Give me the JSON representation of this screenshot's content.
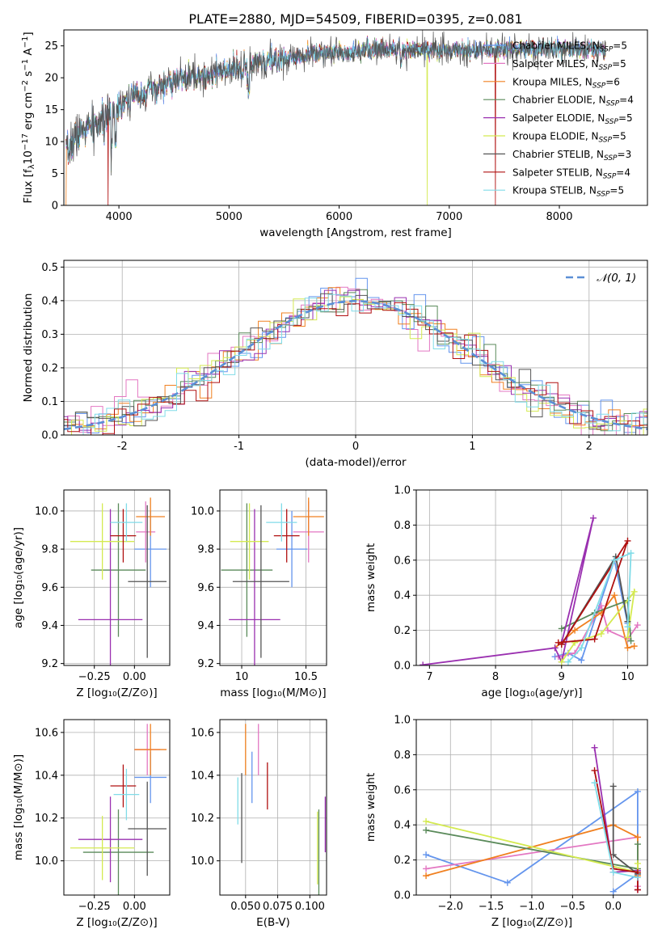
{
  "title": "PLATE=2880, MJD=54509, FIBERID=0395, z=0.081",
  "colors": {
    "Chabrier MILES": "#6495ed",
    "Salpeter MILES": "#e377c2",
    "Kroupa MILES": "#f08020",
    "Chabrier ELODIE": "#5a8a5a",
    "Salpeter ELODIE": "#9a30b0",
    "Kroupa ELODIE": "#d4ea50",
    "Chabrier STELIB": "#555555",
    "Salpeter STELIB": "#b01010",
    "Kroupa STELIB": "#80dce8"
  },
  "chart_data": [
    {
      "id": "spectrum",
      "type": "line",
      "title": "PLATE=2880, MJD=54509, FIBERID=0395, z=0.081",
      "xlabel": "wavelength [Angstrom, rest frame]",
      "ylabel": "Flux [fλ10⁻¹⁷ erg cm⁻² s⁻¹ A⁻¹]",
      "xlim": [
        3500,
        8800
      ],
      "ylim": [
        0,
        27.5
      ],
      "xticks": [
        4000,
        5000,
        6000,
        7000,
        8000
      ],
      "yticks": [
        0,
        5,
        10,
        15,
        20,
        25
      ],
      "grid": false,
      "legend_position": "top-right",
      "legend": [
        {
          "name": "Chabrier MILES",
          "nssp": "5"
        },
        {
          "name": "Salpeter MILES",
          "nssp": "5"
        },
        {
          "name": "Kroupa MILES",
          "nssp": "6"
        },
        {
          "name": "Chabrier ELODIE",
          "nssp": "4"
        },
        {
          "name": "Salpeter ELODIE",
          "nssp": "5"
        },
        {
          "name": "Kroupa ELODIE",
          "nssp": "5"
        },
        {
          "name": "Chabrier STELIB",
          "nssp": "3"
        },
        {
          "name": "Salpeter STELIB",
          "nssp": "4"
        },
        {
          "name": "Kroupa STELIB",
          "nssp": "5"
        }
      ],
      "continuum": [
        [
          3520,
          8
        ],
        [
          3600,
          10.5
        ],
        [
          3700,
          12
        ],
        [
          3850,
          13
        ],
        [
          3950,
          15
        ],
        [
          4100,
          17
        ],
        [
          4300,
          18
        ],
        [
          4500,
          19.5
        ],
        [
          4800,
          20.5
        ],
        [
          5000,
          21
        ],
        [
          5200,
          22
        ],
        [
          5500,
          23
        ],
        [
          5800,
          24
        ],
        [
          6000,
          24
        ],
        [
          6300,
          24.5
        ],
        [
          6600,
          24.5
        ],
        [
          7000,
          24.3
        ],
        [
          7400,
          24.2
        ],
        [
          7800,
          24.6
        ],
        [
          8100,
          24.5
        ],
        [
          8420,
          24.4
        ]
      ],
      "drops": [
        {
          "series": "Kroupa MILES",
          "x": 3520
        },
        {
          "series": "Salpeter STELIB",
          "x": 3900
        },
        {
          "series": "Kroupa ELODIE",
          "x": 6800
        },
        {
          "series": "Salpeter STELIB",
          "x": 7420
        }
      ]
    },
    {
      "id": "residuals",
      "type": "histogram",
      "xlabel": "(data-model)/error",
      "ylabel": "Normed distribution",
      "xlim": [
        -2.5,
        2.5
      ],
      "ylim": [
        0,
        0.52
      ],
      "xticks": [
        -2,
        -1,
        0,
        1,
        2
      ],
      "yticks": [
        0.0,
        0.1,
        0.2,
        0.3,
        0.4,
        0.5
      ],
      "grid": true,
      "legend_position": "top-right",
      "legend_label": "𝒩(0, 1)",
      "reference_color": "#5b8fd6",
      "bin_width": 0.1
    },
    {
      "id": "age_vs_Z",
      "type": "errorbar",
      "xlabel": "Z [log₁₀(Z/Z⊙)]",
      "ylabel": "age  [log₁₀(age/yr)]",
      "xlim": [
        -0.44,
        0.22
      ],
      "ylim": [
        9.19,
        10.11
      ],
      "xticks": [
        -0.25,
        0.0
      ],
      "xticklabels": [
        "−0.25",
        "0.00"
      ],
      "yticks": [
        9.2,
        9.4,
        9.6,
        9.8,
        10.0
      ],
      "grid": true,
      "points": [
        {
          "series": "Chabrier MILES",
          "x": 0.1,
          "xerr": 0.1,
          "y": 9.8,
          "yerr": 0.2
        },
        {
          "series": "Salpeter MILES",
          "x": 0.07,
          "xerr": 0.06,
          "y": 9.89,
          "yerr": 0.16
        },
        {
          "series": "Kroupa MILES",
          "x": 0.1,
          "xerr": 0.09,
          "y": 9.97,
          "yerr": 0.1
        },
        {
          "series": "Chabrier ELODIE",
          "x": -0.1,
          "xerr": 0.17,
          "y": 9.69,
          "yerr": 0.35
        },
        {
          "series": "Salpeter ELODIE",
          "x": -0.15,
          "xerr": 0.2,
          "y": 9.43,
          "yerr": 0.58
        },
        {
          "series": "Kroupa ELODIE",
          "x": -0.2,
          "xerr": 0.2,
          "y": 9.84,
          "yerr": 0.2
        },
        {
          "series": "Chabrier STELIB",
          "x": 0.08,
          "xerr": 0.12,
          "y": 9.63,
          "yerr": 0.4
        },
        {
          "series": "Salpeter STELIB",
          "x": -0.07,
          "xerr": 0.08,
          "y": 9.87,
          "yerr": 0.14
        },
        {
          "series": "Kroupa STELIB",
          "x": -0.05,
          "xerr": 0.1,
          "y": 9.94,
          "yerr": 0.1
        }
      ]
    },
    {
      "id": "age_vs_mass",
      "type": "errorbar",
      "xlabel": "mass [log₁₀(M/M⊙)]",
      "ylabel": "",
      "xlim": [
        9.83,
        10.66
      ],
      "ylim": [
        9.19,
        10.11
      ],
      "xticks": [
        10.0,
        10.5
      ],
      "yticks": [
        9.2,
        9.4,
        9.6,
        9.8,
        10.0
      ],
      "grid": true,
      "points": [
        {
          "series": "Chabrier MILES",
          "x": 10.39,
          "xerr": 0.12,
          "y": 9.8,
          "yerr": 0.2
        },
        {
          "series": "Salpeter MILES",
          "x": 10.52,
          "xerr": 0.12,
          "y": 9.89,
          "yerr": 0.16
        },
        {
          "series": "Kroupa MILES",
          "x": 10.52,
          "xerr": 0.12,
          "y": 9.97,
          "yerr": 0.1
        },
        {
          "series": "Chabrier ELODIE",
          "x": 10.04,
          "xerr": 0.2,
          "y": 9.69,
          "yerr": 0.35
        },
        {
          "series": "Salpeter ELODIE",
          "x": 10.1,
          "xerr": 0.2,
          "y": 9.43,
          "yerr": 0.58
        },
        {
          "series": "Kroupa ELODIE",
          "x": 10.06,
          "xerr": 0.15,
          "y": 9.84,
          "yerr": 0.2
        },
        {
          "series": "Chabrier STELIB",
          "x": 10.15,
          "xerr": 0.22,
          "y": 9.63,
          "yerr": 0.4
        },
        {
          "series": "Salpeter STELIB",
          "x": 10.35,
          "xerr": 0.1,
          "y": 9.87,
          "yerr": 0.14
        },
        {
          "series": "Kroupa STELIB",
          "x": 10.31,
          "xerr": 0.12,
          "y": 9.94,
          "yerr": 0.1
        }
      ]
    },
    {
      "id": "weight_vs_age",
      "type": "line",
      "xlabel": "age  [log₁₀(age/yr)]",
      "ylabel": "mass weight",
      "xlim": [
        6.8,
        10.3
      ],
      "ylim": [
        0,
        1.0
      ],
      "xticks": [
        7,
        8,
        9,
        10
      ],
      "yticks": [
        0.0,
        0.2,
        0.4,
        0.6,
        0.8,
        1.0
      ],
      "grid": true,
      "series": [
        {
          "name": "Chabrier MILES",
          "points": [
            [
              8.9,
              0.05
            ],
            [
              9.1,
              0.07
            ],
            [
              9.3,
              0.03
            ],
            [
              9.8,
              0.6
            ],
            [
              10.0,
              0.24
            ]
          ]
        },
        {
          "name": "Salpeter MILES",
          "points": [
            [
              8.95,
              0.05
            ],
            [
              9.2,
              0.07
            ],
            [
              9.6,
              0.34
            ],
            [
              9.7,
              0.2
            ],
            [
              10.0,
              0.15
            ],
            [
              10.15,
              0.23
            ]
          ]
        },
        {
          "name": "Kroupa MILES",
          "points": [
            [
              8.9,
              0.1
            ],
            [
              9.2,
              0.2
            ],
            [
              9.6,
              0.3
            ],
            [
              9.8,
              0.4
            ],
            [
              10.0,
              0.1
            ],
            [
              10.1,
              0.11
            ]
          ]
        },
        {
          "name": "Chabrier ELODIE",
          "points": [
            [
              9.0,
              0.21
            ],
            [
              9.5,
              0.3
            ],
            [
              10.0,
              0.37
            ],
            [
              10.05,
              0.14
            ]
          ]
        },
        {
          "name": "Salpeter ELODIE",
          "points": [
            [
              6.9,
              0.003
            ],
            [
              8.9,
              0.1
            ],
            [
              9.0,
              0.02
            ],
            [
              9.48,
              0.84
            ],
            [
              9.0,
              0.13
            ]
          ]
        },
        {
          "name": "Kroupa ELODIE",
          "points": [
            [
              9.0,
              0.02
            ],
            [
              9.2,
              0.13
            ],
            [
              9.6,
              0.18
            ],
            [
              10.1,
              0.42
            ],
            [
              10.0,
              0.16
            ]
          ]
        },
        {
          "name": "Chabrier STELIB",
          "points": [
            [
              9.0,
              0.12
            ],
            [
              9.82,
              0.62
            ],
            [
              10.0,
              0.25
            ]
          ]
        },
        {
          "name": "Salpeter STELIB",
          "points": [
            [
              8.95,
              0.13
            ],
            [
              9.5,
              0.15
            ],
            [
              10.0,
              0.71
            ],
            [
              9.0,
              0.12
            ]
          ]
        },
        {
          "name": "Kroupa STELIB",
          "points": [
            [
              9.1,
              0.02
            ],
            [
              9.3,
              0.1
            ],
            [
              9.8,
              0.6
            ],
            [
              10.05,
              0.64
            ],
            [
              10.0,
              0.22
            ]
          ]
        }
      ]
    },
    {
      "id": "mass_vs_Z",
      "type": "errorbar",
      "xlabel": "Z [log₁₀(Z/Z⊙)]",
      "ylabel": "mass [log₁₀(M/M⊙)]",
      "xlim": [
        -0.44,
        0.22
      ],
      "ylim": [
        9.84,
        10.66
      ],
      "xticks": [
        -0.25,
        0.0
      ],
      "xticklabels": [
        "−0.25",
        "0.00"
      ],
      "yticks": [
        10.0,
        10.2,
        10.4,
        10.6
      ],
      "grid": true,
      "points": [
        {
          "series": "Chabrier MILES",
          "x": 0.1,
          "xerr": 0.1,
          "y": 10.39,
          "yerr": 0.12
        },
        {
          "series": "Salpeter MILES",
          "x": 0.08,
          "xerr": 0.08,
          "y": 10.52,
          "yerr": 0.12
        },
        {
          "series": "Kroupa MILES",
          "x": 0.1,
          "xerr": 0.1,
          "y": 10.52,
          "yerr": 0.12
        },
        {
          "series": "Chabrier ELODIE",
          "x": -0.1,
          "xerr": 0.22,
          "y": 10.04,
          "yerr": 0.2
        },
        {
          "series": "Salpeter ELODIE",
          "x": -0.15,
          "xerr": 0.2,
          "y": 10.1,
          "yerr": 0.2
        },
        {
          "series": "Kroupa ELODIE",
          "x": -0.2,
          "xerr": 0.2,
          "y": 10.06,
          "yerr": 0.15
        },
        {
          "series": "Chabrier STELIB",
          "x": 0.08,
          "xerr": 0.12,
          "y": 10.15,
          "yerr": 0.22
        },
        {
          "series": "Salpeter STELIB",
          "x": -0.07,
          "xerr": 0.08,
          "y": 10.35,
          "yerr": 0.1
        },
        {
          "series": "Kroupa STELIB",
          "x": -0.05,
          "xerr": 0.08,
          "y": 10.31,
          "yerr": 0.12
        }
      ]
    },
    {
      "id": "mass_vs_EBV",
      "type": "errorbar",
      "xlabel": "E(B-V)",
      "ylabel": "",
      "xlim": [
        0.03,
        0.113
      ],
      "ylim": [
        9.84,
        10.66
      ],
      "xticks": [
        0.05,
        0.075,
        0.1
      ],
      "xticklabels": [
        "0.050",
        "0.075",
        "0.100"
      ],
      "yticks": [
        10.0,
        10.2,
        10.4,
        10.6
      ],
      "grid": true,
      "points": [
        {
          "series": "Chabrier MILES",
          "x": 0.055,
          "xerr": 0,
          "y": 10.39,
          "yerr": 0.12
        },
        {
          "series": "Salpeter MILES",
          "x": 0.06,
          "xerr": 0,
          "y": 10.52,
          "yerr": 0.12
        },
        {
          "series": "Kroupa MILES",
          "x": 0.05,
          "xerr": 0,
          "y": 10.52,
          "yerr": 0.12
        },
        {
          "series": "Chabrier ELODIE",
          "x": 0.107,
          "xerr": 0,
          "y": 10.04,
          "yerr": 0.2
        },
        {
          "series": "Salpeter ELODIE",
          "x": 0.112,
          "xerr": 0,
          "y": 10.17,
          "yerr": 0.13
        },
        {
          "series": "Kroupa ELODIE",
          "x": 0.106,
          "xerr": 0,
          "y": 10.06,
          "yerr": 0.17
        },
        {
          "series": "Chabrier STELIB",
          "x": 0.047,
          "xerr": 0,
          "y": 10.2,
          "yerr": 0.21
        },
        {
          "series": "Salpeter STELIB",
          "x": 0.067,
          "xerr": 0,
          "y": 10.35,
          "yerr": 0.11
        },
        {
          "series": "Kroupa STELIB",
          "x": 0.044,
          "xerr": 0,
          "y": 10.28,
          "yerr": 0.11
        }
      ]
    },
    {
      "id": "weight_vs_Z",
      "type": "line",
      "xlabel": "Z [log₁₀(Z/Z⊙)]",
      "ylabel": "mass weight",
      "xlim": [
        -2.42,
        0.42
      ],
      "ylim": [
        0,
        1.0
      ],
      "xticks": [
        -2.0,
        -1.5,
        -1.0,
        -0.5,
        0.0
      ],
      "xticklabels": [
        "−2.0",
        "−1.5",
        "−1.0",
        "−0.5",
        "0.0"
      ],
      "yticks": [
        0.0,
        0.2,
        0.4,
        0.6,
        0.8,
        1.0
      ],
      "grid": true,
      "series": [
        {
          "name": "Chabrier MILES",
          "points": [
            [
              -2.3,
              0.23
            ],
            [
              -1.3,
              0.07
            ],
            [
              0.3,
              0.59
            ],
            [
              0.3,
              0.12
            ],
            [
              0.0,
              0.02
            ]
          ]
        },
        {
          "name": "Salpeter MILES",
          "points": [
            [
              -2.3,
              0.15
            ],
            [
              0.3,
              0.33
            ],
            [
              0.3,
              0.05
            ]
          ]
        },
        {
          "name": "Kroupa MILES",
          "points": [
            [
              -2.3,
              0.11
            ],
            [
              0.0,
              0.4
            ],
            [
              0.3,
              0.33
            ],
            [
              0.3,
              0.11
            ]
          ]
        },
        {
          "name": "Chabrier ELODIE",
          "points": [
            [
              -2.3,
              0.37
            ],
            [
              0.3,
              0.15
            ],
            [
              0.3,
              0.29
            ]
          ]
        },
        {
          "name": "Salpeter ELODIE",
          "points": [
            [
              -0.23,
              0.84
            ],
            [
              0.0,
              0.13
            ],
            [
              0.3,
              0.14
            ],
            [
              0.3,
              0.03
            ]
          ]
        },
        {
          "name": "Kroupa ELODIE",
          "points": [
            [
              -2.3,
              0.42
            ],
            [
              0.3,
              0.13
            ],
            [
              0.3,
              0.18
            ]
          ]
        },
        {
          "name": "Chabrier STELIB",
          "points": [
            [
              0.0,
              0.62
            ],
            [
              0.0,
              0.23
            ],
            [
              0.3,
              0.12
            ]
          ]
        },
        {
          "name": "Salpeter STELIB",
          "points": [
            [
              -0.23,
              0.71
            ],
            [
              0.0,
              0.15
            ],
            [
              0.3,
              0.13
            ],
            [
              0.3,
              0.03
            ]
          ]
        },
        {
          "name": "Kroupa STELIB",
          "points": [
            [
              -0.23,
              0.64
            ],
            [
              0.0,
              0.13
            ],
            [
              0.3,
              0.1
            ]
          ]
        }
      ]
    }
  ]
}
